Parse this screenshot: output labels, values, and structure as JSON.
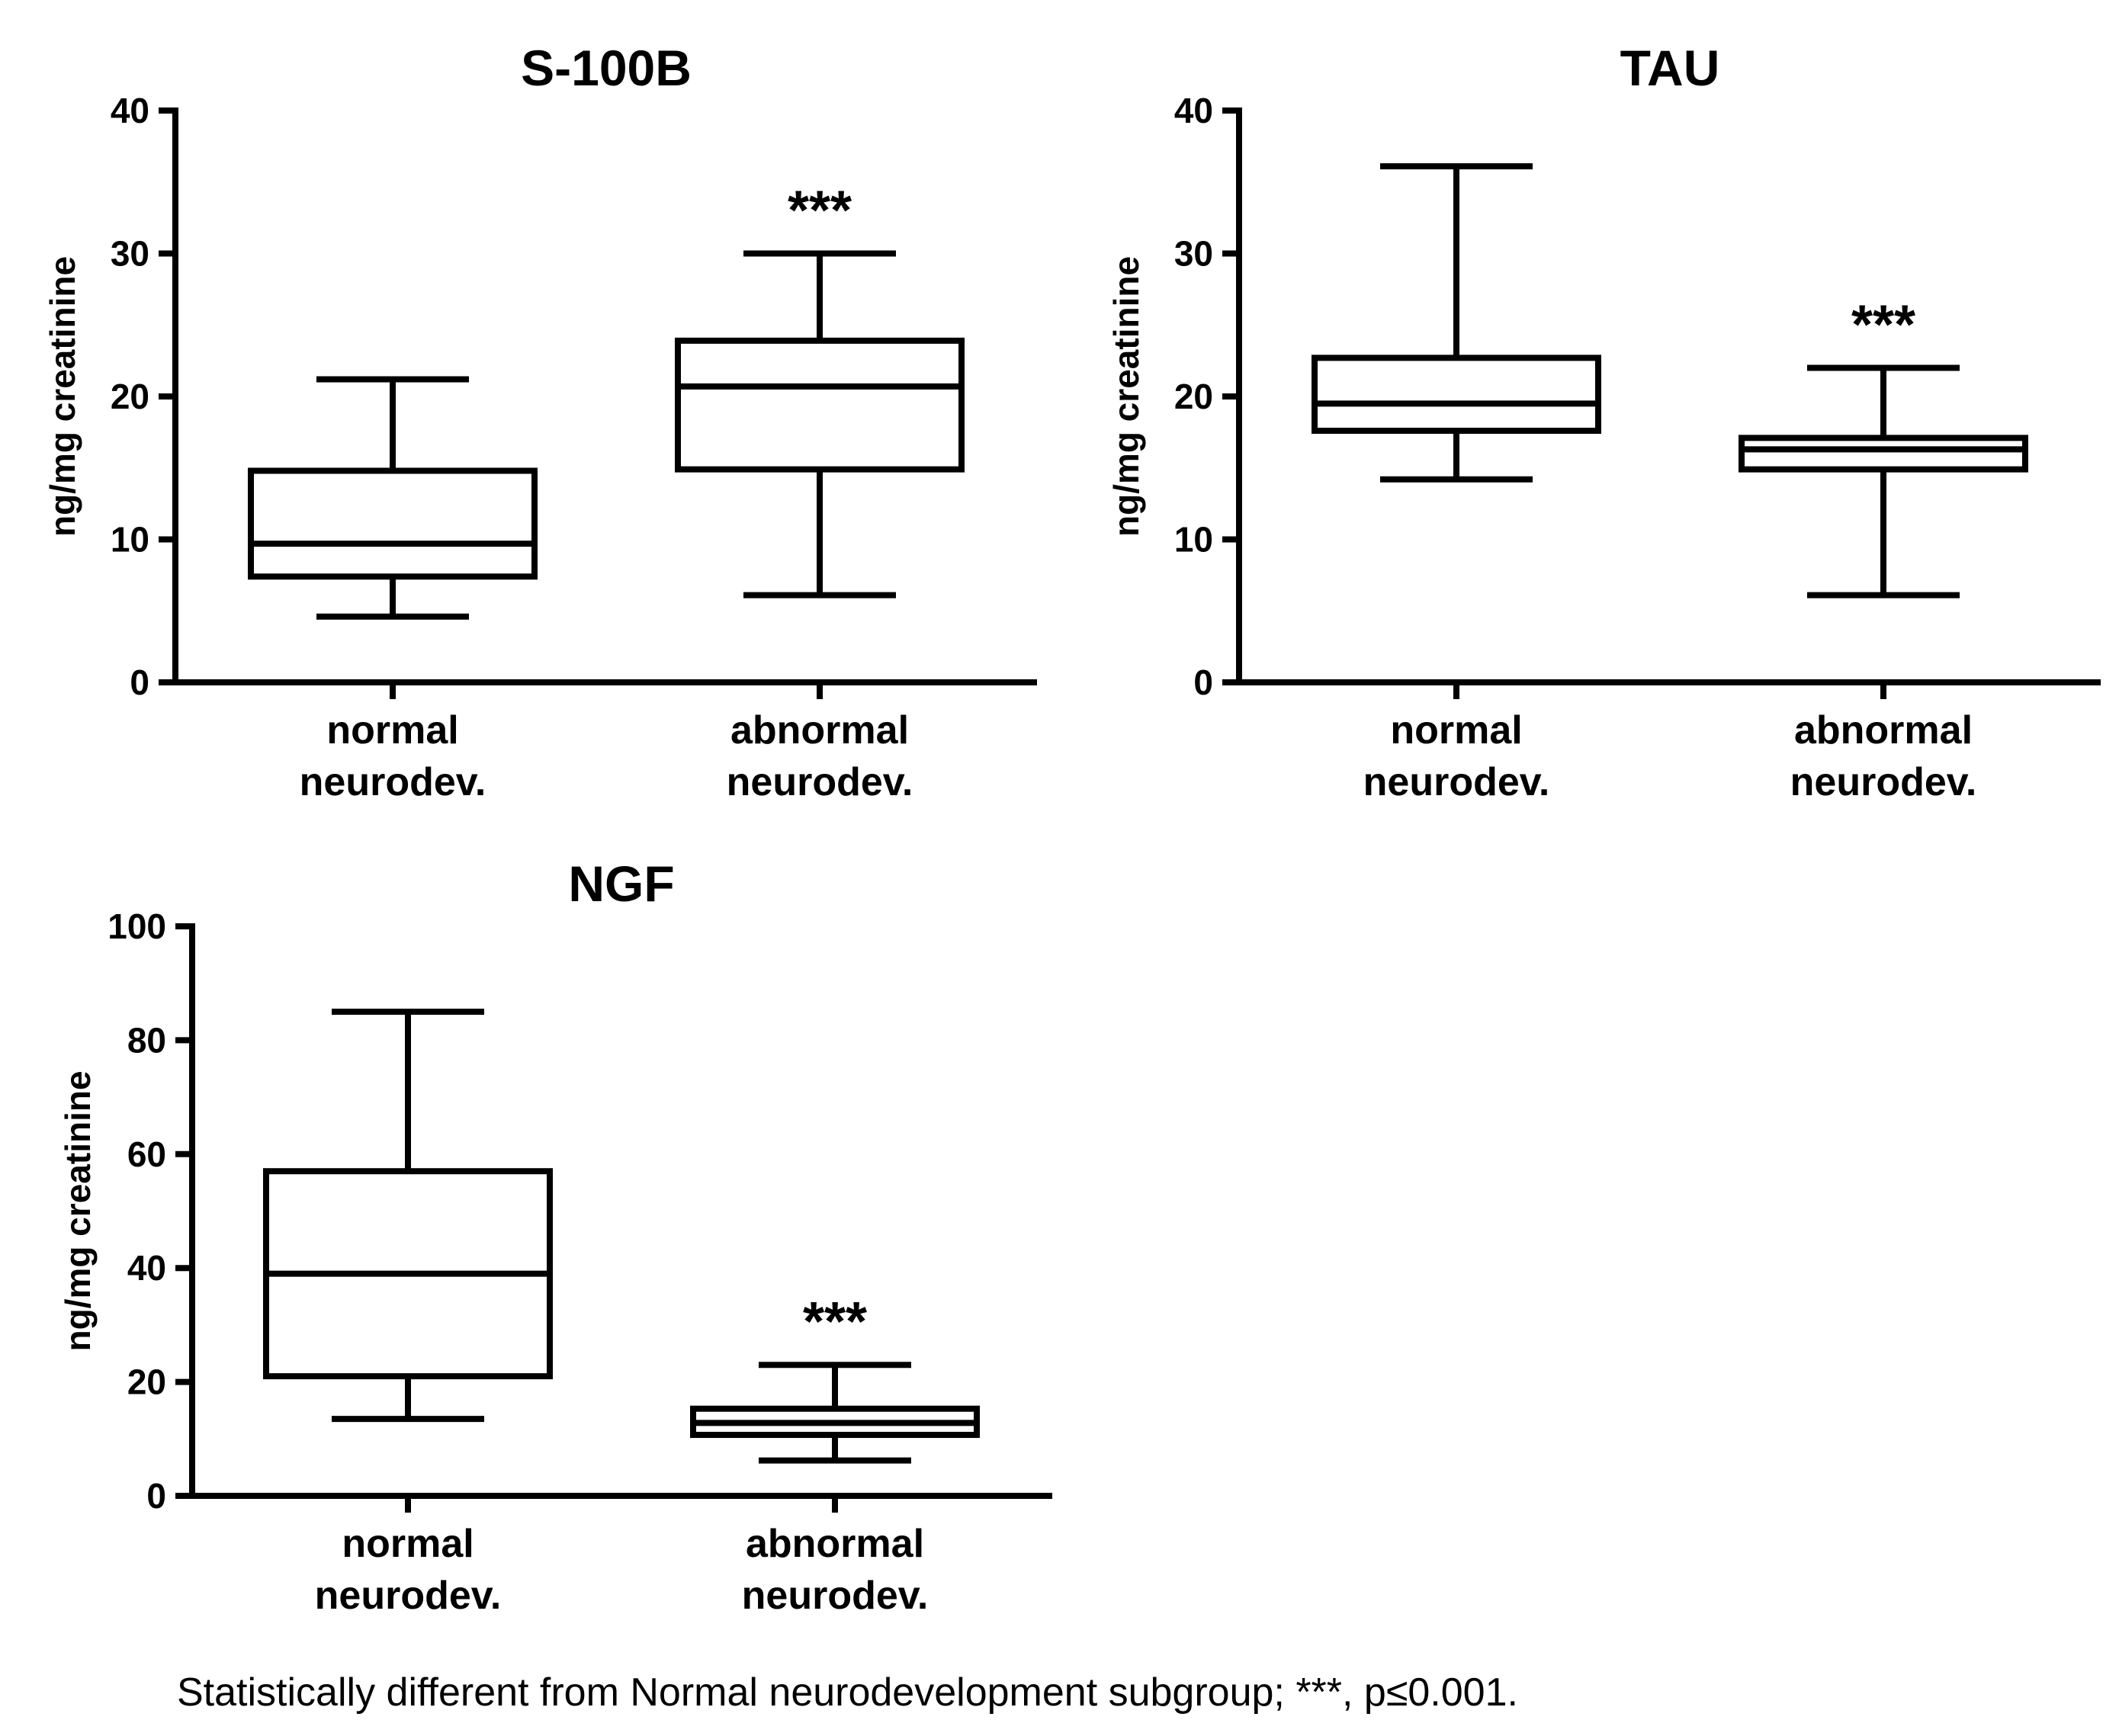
{
  "chart_data": [
    {
      "type": "box",
      "title": "S-100B",
      "ylabel": "ng/mg creatinine",
      "ylim": [
        0,
        40
      ],
      "yticks": [
        0,
        10,
        20,
        30,
        40
      ],
      "categories": [
        "normal\nneurodev.",
        "abnormal\nneurodev."
      ],
      "boxes": [
        {
          "category": "normal\nneurodev.",
          "min": 4.6,
          "q1": 7.4,
          "median": 9.7,
          "q3": 14.8,
          "max": 21.2,
          "annotation": ""
        },
        {
          "category": "abnormal\nneurodev.",
          "min": 6.1,
          "q1": 14.9,
          "median": 20.7,
          "q3": 23.9,
          "max": 30.0,
          "annotation": "***"
        }
      ]
    },
    {
      "type": "box",
      "title": "TAU",
      "ylabel": "ng/mg creatinine",
      "ylim": [
        0,
        40
      ],
      "yticks": [
        0,
        10,
        20,
        30,
        40
      ],
      "categories": [
        "normal\nneurodev.",
        "abnormal\nneurodev."
      ],
      "boxes": [
        {
          "category": "normal\nneurodev.",
          "min": 14.2,
          "q1": 17.6,
          "median": 19.5,
          "q3": 22.7,
          "max": 36.1,
          "annotation": ""
        },
        {
          "category": "abnormal\nneurodev.",
          "min": 6.1,
          "q1": 14.9,
          "median": 16.3,
          "q3": 17.1,
          "max": 22.0,
          "annotation": "***"
        }
      ]
    },
    {
      "type": "box",
      "title": "NGF",
      "ylabel": "ng/mg creatinine",
      "ylim": [
        0,
        100
      ],
      "yticks": [
        0,
        20,
        40,
        60,
        80,
        100
      ],
      "categories": [
        "normal\nneurodev.",
        "abnormal\nneurodev."
      ],
      "boxes": [
        {
          "category": "normal\nneurodev.",
          "min": 13.5,
          "q1": 21.0,
          "median": 39.0,
          "q3": 57.0,
          "max": 85.0,
          "annotation": ""
        },
        {
          "category": "abnormal\nneurodev.",
          "min": 6.2,
          "q1": 10.7,
          "median": 12.8,
          "q3": 15.3,
          "max": 23.0,
          "annotation": "***"
        }
      ]
    }
  ],
  "footnote": "Statistically different from Normal neurodevelopment subgroup; ***, p≤0.001."
}
